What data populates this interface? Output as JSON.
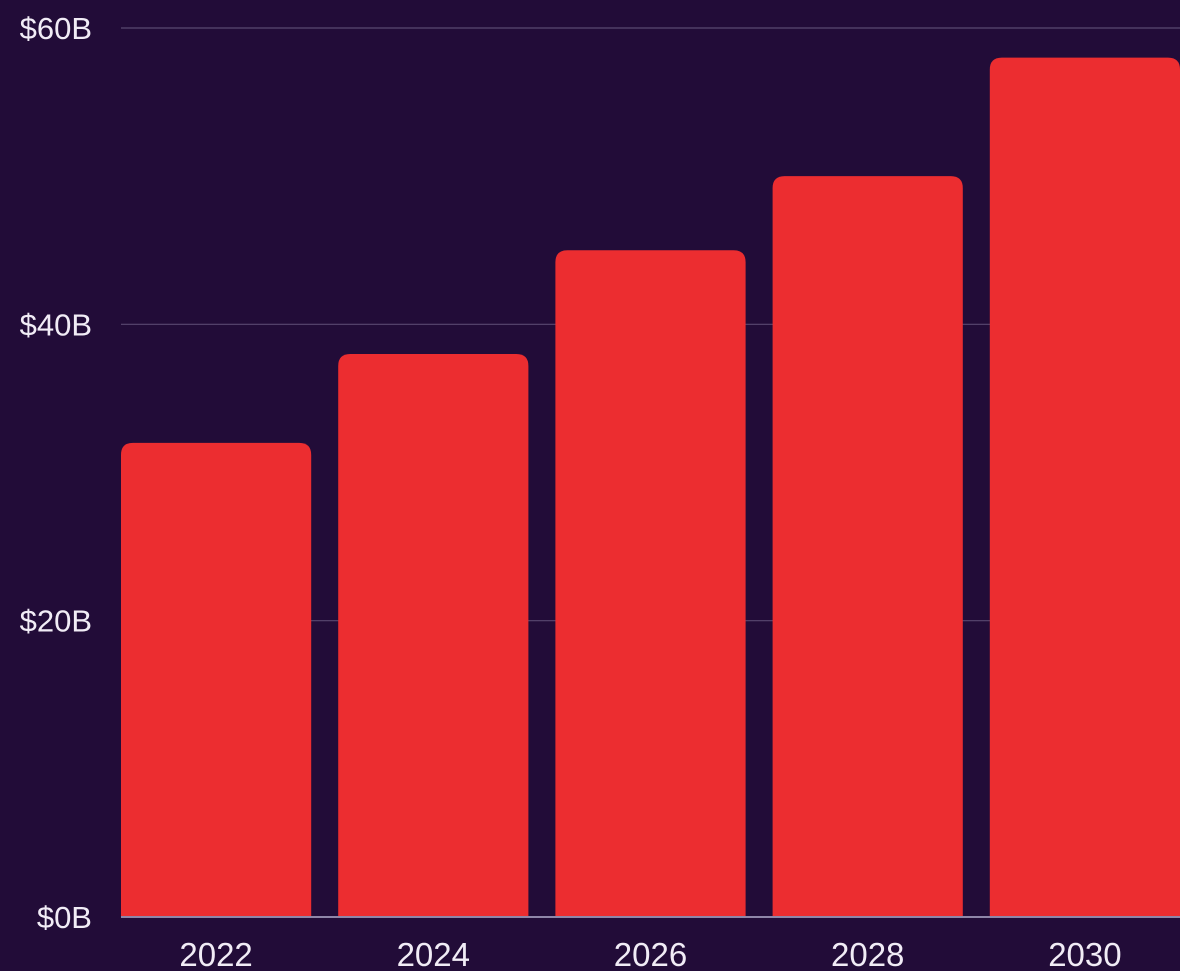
{
  "chart_data": {
    "type": "bar",
    "categories": [
      "2022",
      "2024",
      "2026",
      "2028",
      "2030"
    ],
    "values": [
      32,
      38,
      45,
      50,
      58
    ],
    "ylim": [
      0,
      60
    ],
    "yticks": [
      0,
      20,
      40,
      60
    ],
    "ytick_labels": [
      "$0B",
      "$20B",
      "$40B",
      "$60B"
    ],
    "title": "",
    "xlabel": "",
    "ylabel": "",
    "grid": true,
    "legend": "none"
  },
  "colors": {
    "background": "#220c38",
    "bar": "#ec2d30",
    "gridline": "#5a4870",
    "axis": "#8f86a8",
    "text": "#f1ecf6"
  }
}
